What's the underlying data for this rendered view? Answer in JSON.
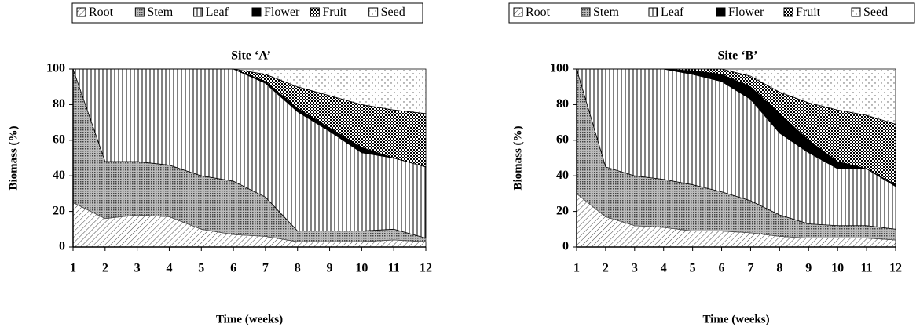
{
  "chart_data": [
    {
      "type": "stacked-area",
      "title": "Site ‘A’",
      "x_label": "Time (weeks)",
      "y_label": "Biomass (%)",
      "x": [
        1,
        2,
        3,
        4,
        5,
        6,
        7,
        8,
        9,
        10,
        11,
        12
      ],
      "xlim": [
        1,
        12
      ],
      "xticks": [
        1,
        2,
        3,
        4,
        5,
        6,
        7,
        8,
        9,
        10,
        11,
        12
      ],
      "ylim": [
        0,
        100
      ],
      "yticks": [
        0,
        20,
        40,
        60,
        80,
        100
      ],
      "series": [
        {
          "name": "Root",
          "color": "#000000",
          "pattern": "diagonal",
          "values": [
            25,
            16,
            18,
            17,
            10,
            7,
            6,
            3,
            3,
            3,
            4,
            3
          ]
        },
        {
          "name": "Stem",
          "color": "#555555",
          "pattern": "crosshatch",
          "values": [
            75,
            32,
            30,
            29,
            30,
            30,
            22,
            6,
            6,
            6,
            6,
            2
          ]
        },
        {
          "name": "Leaf",
          "color": "#000000",
          "pattern": "vertical",
          "values": [
            0,
            52,
            52,
            54,
            60,
            63,
            64,
            67,
            56,
            44,
            40,
            40
          ]
        },
        {
          "name": "Flower",
          "color": "#000000",
          "pattern": "solid",
          "values": [
            0,
            0,
            0,
            0,
            0,
            0,
            1,
            2,
            2,
            3,
            0,
            0
          ]
        },
        {
          "name": "Fruit",
          "color": "#000000",
          "pattern": "checker",
          "values": [
            0,
            0,
            0,
            0,
            0,
            0,
            4,
            12,
            18,
            24,
            27,
            30
          ]
        },
        {
          "name": "Seed",
          "color": "#000000",
          "pattern": "dots",
          "values": [
            0,
            0,
            0,
            0,
            0,
            0,
            3,
            10,
            15,
            20,
            23,
            25
          ]
        }
      ]
    },
    {
      "type": "stacked-area",
      "title": "Site ‘B’",
      "x_label": "Time (weeks)",
      "y_label": "Biomass (%)",
      "x": [
        1,
        2,
        3,
        4,
        5,
        6,
        7,
        8,
        9,
        10,
        11,
        12
      ],
      "xlim": [
        1,
        12
      ],
      "xticks": [
        1,
        2,
        3,
        4,
        5,
        6,
        7,
        8,
        9,
        10,
        11,
        12
      ],
      "ylim": [
        0,
        100
      ],
      "yticks": [
        0,
        20,
        40,
        60,
        80,
        100
      ],
      "series": [
        {
          "name": "Root",
          "color": "#000000",
          "pattern": "diagonal",
          "values": [
            30,
            17,
            12,
            11,
            9,
            9,
            8,
            6,
            5,
            5,
            5,
            4
          ]
        },
        {
          "name": "Stem",
          "color": "#555555",
          "pattern": "crosshatch",
          "values": [
            70,
            28,
            28,
            27,
            26,
            22,
            18,
            12,
            8,
            7,
            7,
            6
          ]
        },
        {
          "name": "Leaf",
          "color": "#000000",
          "pattern": "vertical",
          "values": [
            0,
            55,
            60,
            62,
            62,
            62,
            57,
            46,
            40,
            32,
            32,
            24
          ]
        },
        {
          "name": "Flower",
          "color": "#000000",
          "pattern": "solid",
          "values": [
            0,
            0,
            0,
            0,
            2,
            4,
            7,
            11,
            7,
            4,
            0,
            1
          ]
        },
        {
          "name": "Fruit",
          "color": "#000000",
          "pattern": "checker",
          "values": [
            0,
            0,
            0,
            0,
            1,
            3,
            6,
            12,
            21,
            29,
            30,
            34
          ]
        },
        {
          "name": "Seed",
          "color": "#000000",
          "pattern": "dots",
          "values": [
            0,
            0,
            0,
            0,
            0,
            0,
            4,
            13,
            19,
            23,
            26,
            31
          ]
        }
      ]
    }
  ]
}
